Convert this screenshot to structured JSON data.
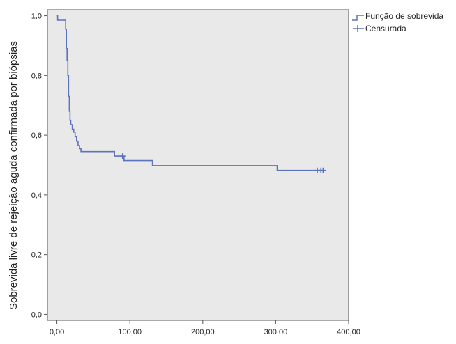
{
  "chart_data": {
    "type": "line",
    "title": "",
    "xlabel": "",
    "ylabel": "Sobrevida livre de rejeição aguda confirmada por biópsias",
    "xlim": [
      -13,
      400
    ],
    "ylim": [
      -0.02,
      1.02
    ],
    "x_ticks": [
      0,
      100,
      200,
      300,
      400
    ],
    "x_tick_labels": [
      "0,00",
      "100,00",
      "200,00",
      "300,00",
      "400,00"
    ],
    "y_ticks": [
      0.0,
      0.2,
      0.4,
      0.6,
      0.8,
      1.0
    ],
    "y_tick_labels": [
      "0,0",
      "0,2",
      "0,4",
      "0,6",
      "0,8",
      "1,0"
    ],
    "grid": false,
    "legend_position": "top-right outside",
    "colors": {
      "plot_background": "#e9e9e9",
      "line": "#5b74bb",
      "frame": "#555555"
    },
    "series": [
      {
        "name": "Função de sobrevida",
        "step": true,
        "x": [
          0,
          1,
          1,
          12,
          12,
          13,
          13,
          14,
          14,
          15,
          15,
          16,
          16,
          17,
          17,
          18,
          18,
          19,
          19,
          21,
          21,
          23,
          23,
          25,
          25,
          27,
          27,
          29,
          29,
          31,
          31,
          33,
          33,
          79,
          79,
          92,
          92,
          131,
          131,
          302,
          302,
          366
        ],
        "y": [
          1.0,
          1.0,
          0.985,
          0.985,
          0.955,
          0.955,
          0.89,
          0.89,
          0.85,
          0.85,
          0.8,
          0.8,
          0.73,
          0.73,
          0.68,
          0.68,
          0.65,
          0.65,
          0.635,
          0.635,
          0.62,
          0.62,
          0.61,
          0.61,
          0.595,
          0.595,
          0.58,
          0.58,
          0.565,
          0.565,
          0.555,
          0.555,
          0.545,
          0.545,
          0.53,
          0.53,
          0.515,
          0.515,
          0.498,
          0.498,
          0.482,
          0.482
        ]
      },
      {
        "name": "Censurada",
        "type": "scatter",
        "marker": "+",
        "x": [
          90,
          357,
          362,
          365
        ],
        "y": [
          0.53,
          0.482,
          0.482,
          0.482
        ]
      }
    ]
  }
}
